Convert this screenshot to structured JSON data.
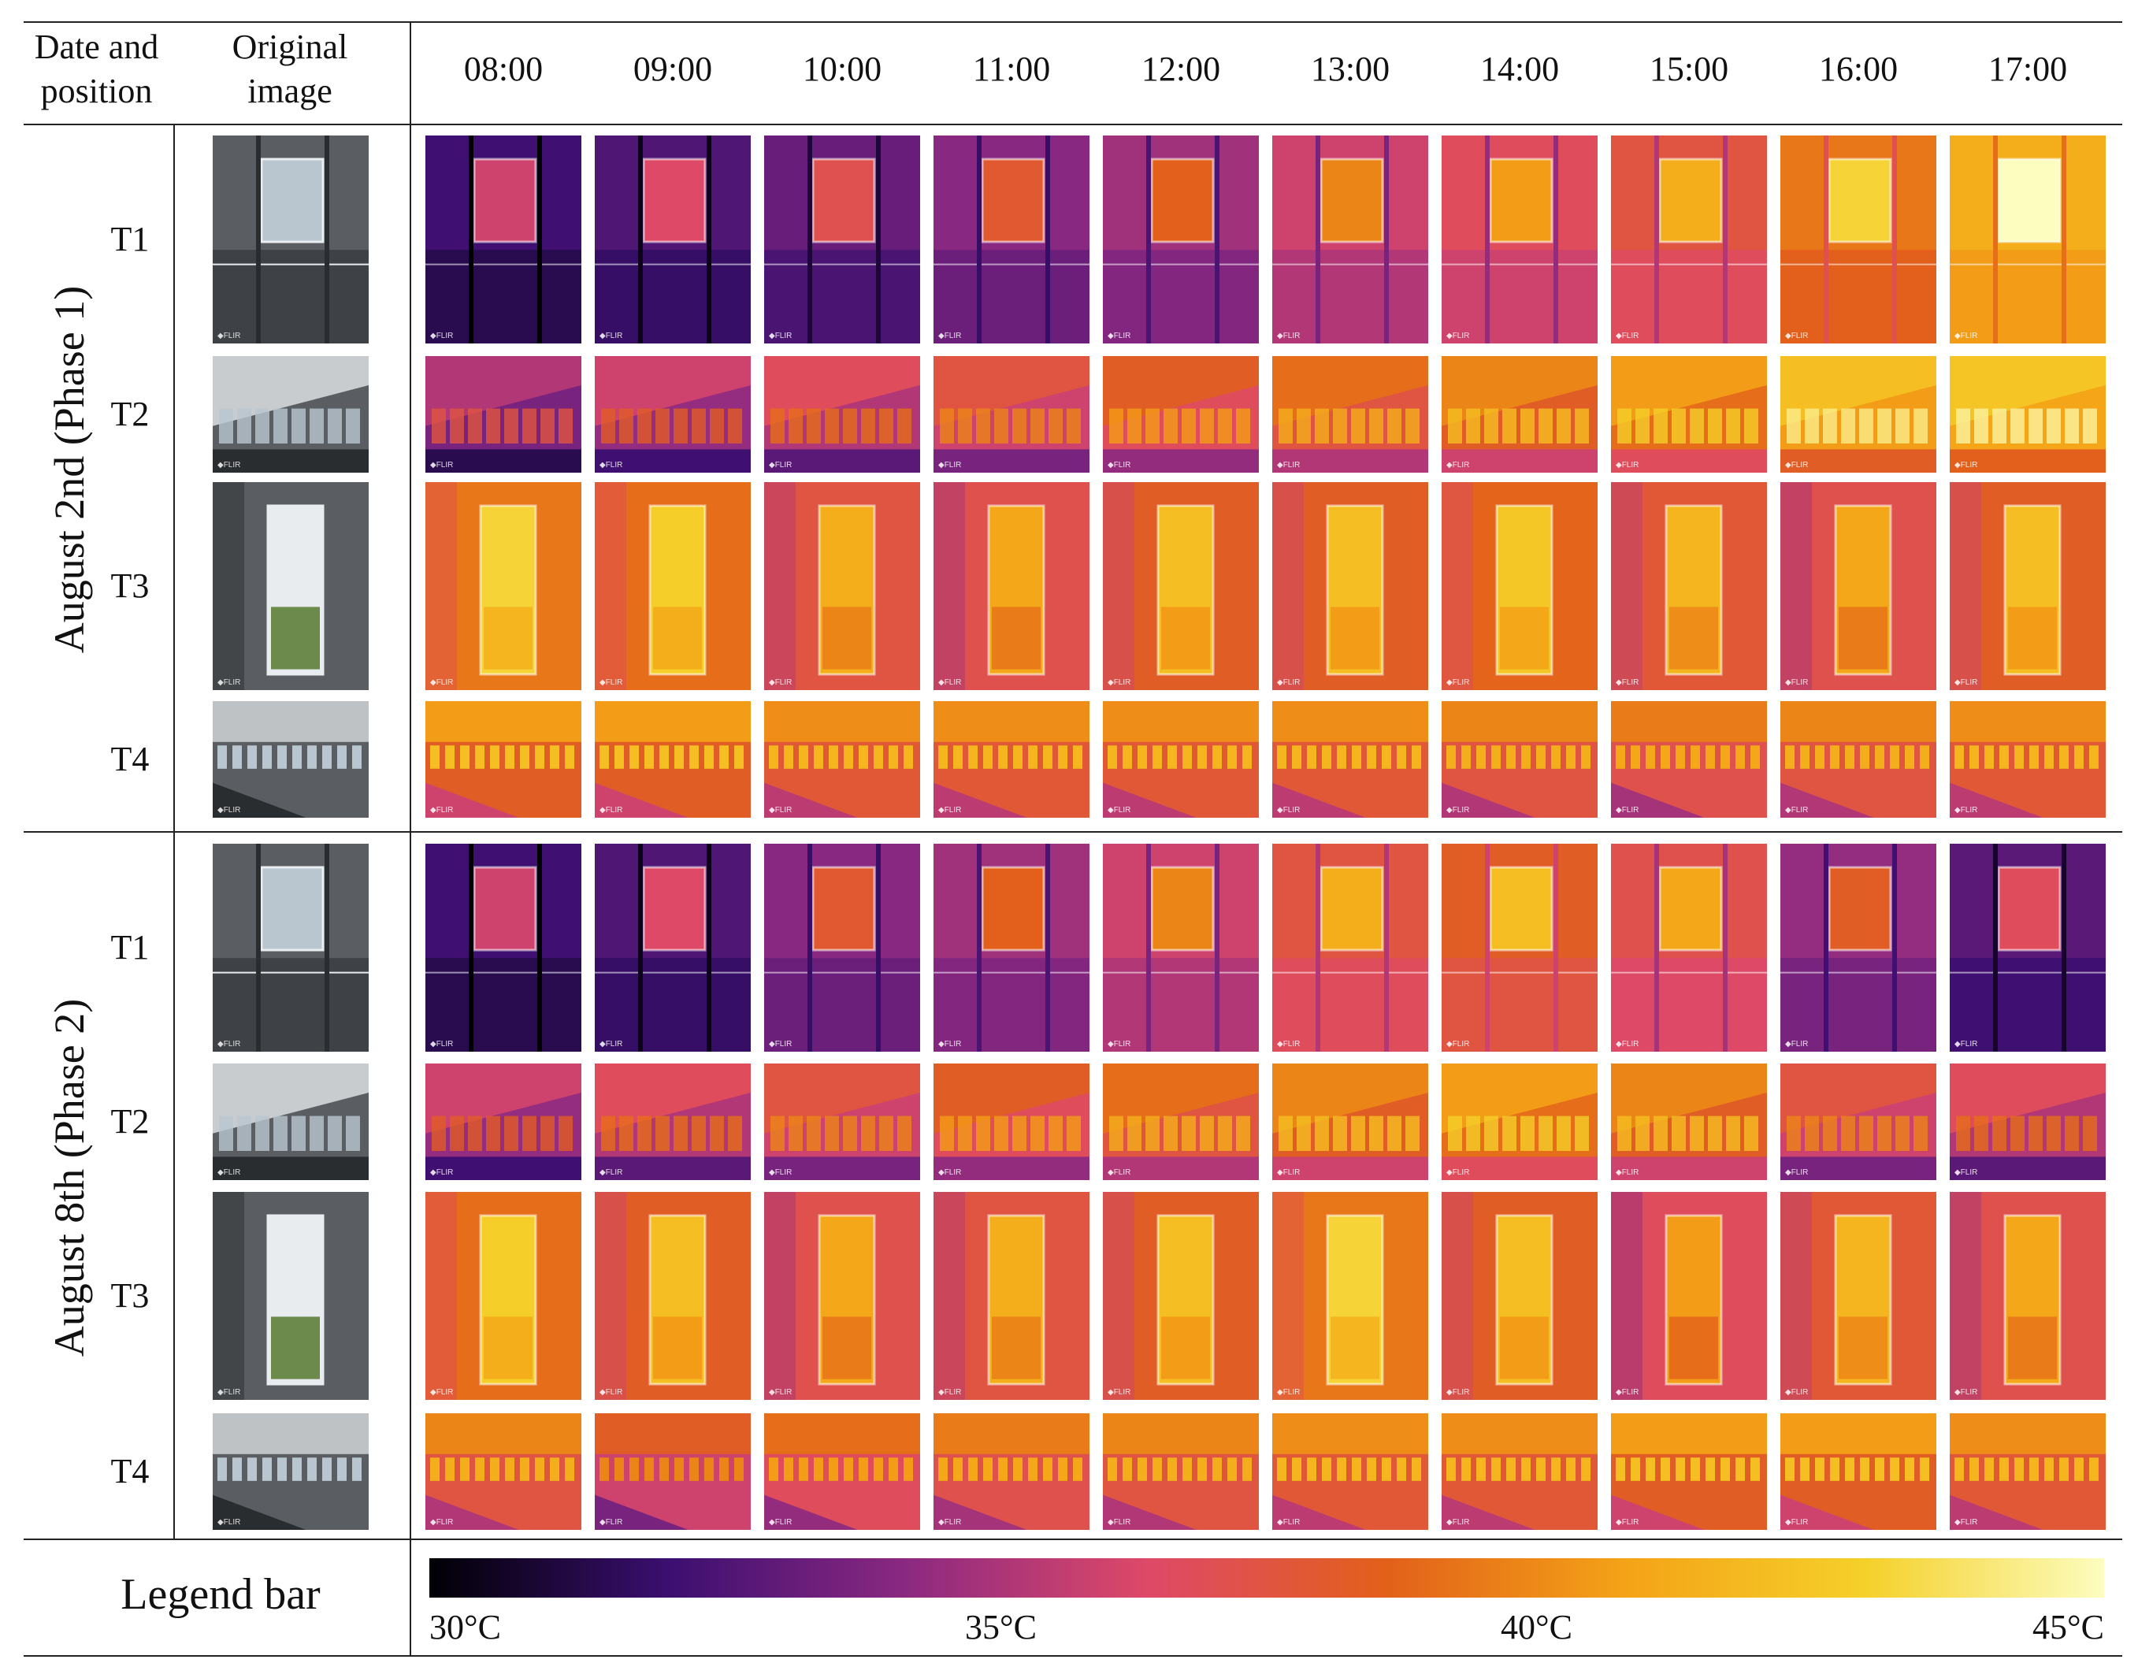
{
  "header": {
    "date_position": [
      "Date and",
      "position"
    ],
    "original_image": [
      "Original",
      "image"
    ],
    "times": [
      "08:00",
      "09:00",
      "10:00",
      "11:00",
      "12:00",
      "13:00",
      "14:00",
      "15:00",
      "16:00",
      "17:00"
    ]
  },
  "phases": [
    {
      "label": "August 2nd (Phase 1)",
      "positions": [
        "T1",
        "T2",
        "T3",
        "T4"
      ],
      "intensity": [
        [
          0.15,
          0.18,
          0.22,
          0.28,
          0.32,
          0.4,
          0.45,
          0.5,
          0.62,
          0.75
        ],
        [
          0.25,
          0.3,
          0.35,
          0.4,
          0.45,
          0.5,
          0.55,
          0.6,
          0.7,
          0.72
        ],
        [
          0.62,
          0.6,
          0.5,
          0.48,
          0.55,
          0.55,
          0.58,
          0.52,
          0.48,
          0.55
        ],
        [
          0.55,
          0.55,
          0.52,
          0.52,
          0.52,
          0.52,
          0.5,
          0.48,
          0.5,
          0.52
        ]
      ]
    },
    {
      "label": "August 8th (Phase 2)",
      "positions": [
        "T1",
        "T2",
        "T3",
        "T4"
      ],
      "intensity": [
        [
          0.15,
          0.18,
          0.28,
          0.32,
          0.4,
          0.5,
          0.55,
          0.48,
          0.3,
          0.2
        ],
        [
          0.3,
          0.35,
          0.4,
          0.45,
          0.5,
          0.55,
          0.6,
          0.55,
          0.4,
          0.35
        ],
        [
          0.6,
          0.55,
          0.48,
          0.5,
          0.55,
          0.62,
          0.55,
          0.45,
          0.52,
          0.48
        ],
        [
          0.5,
          0.4,
          0.45,
          0.48,
          0.5,
          0.52,
          0.52,
          0.55,
          0.55,
          0.52
        ]
      ]
    }
  ],
  "flir_mark": "FLIR",
  "legend": {
    "title": "Legend bar",
    "ticks": [
      "30°C",
      "35°C",
      "40°C",
      "45°C"
    ],
    "colors": [
      "#000004",
      "#3b0f70",
      "#8c2981",
      "#de4968",
      "#e2601a",
      "#f4a317",
      "#f5d02a",
      "#fcfdbf"
    ]
  }
}
